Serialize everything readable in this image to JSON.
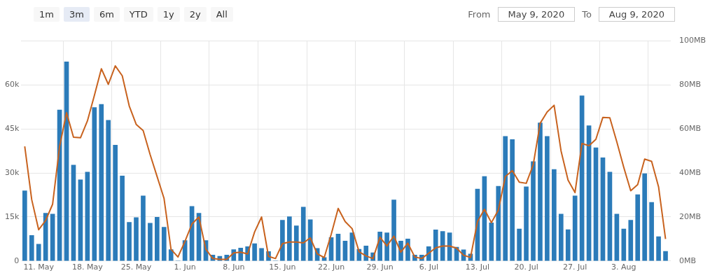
{
  "chart_data": {
    "type": "bar",
    "annotations": [
      "1m",
      "3m",
      "6m",
      "YTD",
      "1y",
      "2y",
      "All",
      "From",
      "May 9, 2020",
      "To",
      "Aug 9, 2020"
    ],
    "x": [
      "2020-05-09",
      "2020-05-10",
      "2020-05-11",
      "2020-05-12",
      "2020-05-13",
      "2020-05-14",
      "2020-05-15",
      "2020-05-16",
      "2020-05-17",
      "2020-05-18",
      "2020-05-19",
      "2020-05-20",
      "2020-05-21",
      "2020-05-22",
      "2020-05-23",
      "2020-05-24",
      "2020-05-25",
      "2020-05-26",
      "2020-05-27",
      "2020-05-28",
      "2020-05-29",
      "2020-05-30",
      "2020-05-31",
      "2020-06-01",
      "2020-06-02",
      "2020-06-03",
      "2020-06-04",
      "2020-06-05",
      "2020-06-06",
      "2020-06-07",
      "2020-06-08",
      "2020-06-09",
      "2020-06-10",
      "2020-06-11",
      "2020-06-12",
      "2020-06-13",
      "2020-06-14",
      "2020-06-15",
      "2020-06-16",
      "2020-06-17",
      "2020-06-18",
      "2020-06-19",
      "2020-06-20",
      "2020-06-21",
      "2020-06-22",
      "2020-06-23",
      "2020-06-24",
      "2020-06-25",
      "2020-06-26",
      "2020-06-27",
      "2020-06-28",
      "2020-06-29",
      "2020-06-30",
      "2020-07-01",
      "2020-07-02",
      "2020-07-03",
      "2020-07-04",
      "2020-07-05",
      "2020-07-06",
      "2020-07-07",
      "2020-07-08",
      "2020-07-09",
      "2020-07-10",
      "2020-07-11",
      "2020-07-12",
      "2020-07-13",
      "2020-07-14",
      "2020-07-15",
      "2020-07-16",
      "2020-07-17",
      "2020-07-18",
      "2020-07-19",
      "2020-07-20",
      "2020-07-21",
      "2020-07-22",
      "2020-07-23",
      "2020-07-24",
      "2020-07-25",
      "2020-07-26",
      "2020-07-27",
      "2020-07-28",
      "2020-07-29",
      "2020-07-30",
      "2020-07-31",
      "2020-08-01",
      "2020-08-02",
      "2020-08-03",
      "2020-08-04",
      "2020-08-05",
      "2020-08-06",
      "2020-08-07",
      "2020-08-08",
      "2020-08-09"
    ],
    "series": [
      {
        "color": "#2b7bb9",
        "values": [
          23900,
          8700,
          5700,
          16300,
          16000,
          51500,
          67900,
          32700,
          27700,
          30300,
          52300,
          53400,
          48000,
          39500,
          29000,
          13200,
          14800,
          22200,
          12900,
          14900,
          11500,
          3900,
          0,
          7000,
          18600,
          16300,
          7000,
          2000,
          1600,
          2000,
          3900,
          4400,
          4900,
          5900,
          4300,
          3200,
          0,
          13900,
          15100,
          12000,
          18400,
          14100,
          4300,
          1200,
          8000,
          9200,
          6800,
          9600,
          4000,
          5100,
          2800,
          9900,
          9600,
          20800,
          6800,
          7500,
          2000,
          2000,
          4900,
          10600,
          10100,
          9600,
          4700,
          3800,
          2400,
          24500,
          28800,
          13000,
          25500,
          42500,
          41400,
          10900,
          25300,
          33900,
          47100,
          42500,
          31200,
          16000,
          10700,
          22200,
          56300,
          46100,
          38600,
          35200,
          30300,
          16000,
          10900,
          13900,
          22600,
          29800,
          20000,
          8300,
          3300
        ]
      },
      {
        "type": "line",
        "axis": "y2",
        "color": "#c8621e",
        "values": [
          52.1,
          27.9,
          14.2,
          18.4,
          25.8,
          52,
          67.4,
          56.3,
          56,
          63.7,
          75.3,
          87.4,
          80.3,
          88.7,
          84.2,
          70.5,
          62.1,
          59.3,
          48.4,
          38.4,
          28.4,
          5.3,
          1.8,
          8.9,
          16.8,
          20,
          5.3,
          1.1,
          0.7,
          0.7,
          3.7,
          4,
          3.2,
          13.2,
          20,
          2.1,
          1.1,
          7.9,
          8.6,
          8.6,
          8.2,
          10.5,
          3.2,
          1.6,
          12.1,
          23.9,
          17.9,
          14.7,
          4.2,
          2.3,
          1.1,
          10.8,
          6.8,
          11.3,
          4,
          8.1,
          1.8,
          1.1,
          3.5,
          6,
          6.8,
          6.8,
          5.8,
          2.6,
          1.6,
          17.9,
          23.5,
          17.4,
          23.2,
          38.4,
          41.1,
          35.8,
          35.3,
          43.7,
          62.6,
          67.7,
          70.8,
          50,
          36.8,
          31.1,
          53.4,
          52.4,
          55.3,
          65.3,
          65.1,
          54.2,
          42.6,
          31.9,
          34.7,
          46.3,
          45.3,
          33.7,
          10
        ]
      }
    ],
    "xlim": [
      "2020-05-08T12:00",
      "2020-08-09T18:00"
    ],
    "xticks": [
      {
        "value": "2020-05-11",
        "label": "11. May"
      },
      {
        "value": "2020-05-18",
        "label": "18. May"
      },
      {
        "value": "2020-05-25",
        "label": "25. May"
      },
      {
        "value": "2020-06-01",
        "label": "1. Jun"
      },
      {
        "value": "2020-06-08",
        "label": "8. Jun"
      },
      {
        "value": "2020-06-15",
        "label": "15. Jun"
      },
      {
        "value": "2020-06-22",
        "label": "22. Jun"
      },
      {
        "value": "2020-06-29",
        "label": "29. Jun"
      },
      {
        "value": "2020-07-06",
        "label": "6. Jul"
      },
      {
        "value": "2020-07-13",
        "label": "13. Jul"
      },
      {
        "value": "2020-07-20",
        "label": "20. Jul"
      },
      {
        "value": "2020-07-27",
        "label": "27. Jul"
      },
      {
        "value": "2020-08-03",
        "label": "3. Aug"
      }
    ],
    "ylim": [
      0,
      75000
    ],
    "yticks": [
      0,
      {
        "value": 15000,
        "label": "15k"
      },
      {
        "value": 30000,
        "label": "30k"
      },
      {
        "value": 45000,
        "label": "45k"
      },
      {
        "value": 60000,
        "label": "60k"
      },
      {
        "value": 75000,
        "label": null
      }
    ],
    "y2lim": [
      0,
      100
    ],
    "y2ticks": [
      {
        "value": 0,
        "label": "0MB"
      },
      {
        "value": 20,
        "label": "20MB"
      },
      {
        "value": 40,
        "label": "40MB"
      },
      {
        "value": 60,
        "label": "60MB"
      },
      {
        "value": 80,
        "label": "80MB"
      },
      {
        "value": 100,
        "label": "100MB"
      }
    ],
    "grid": true,
    "legend": false,
    "marker": "none",
    "line_style": "solid"
  }
}
